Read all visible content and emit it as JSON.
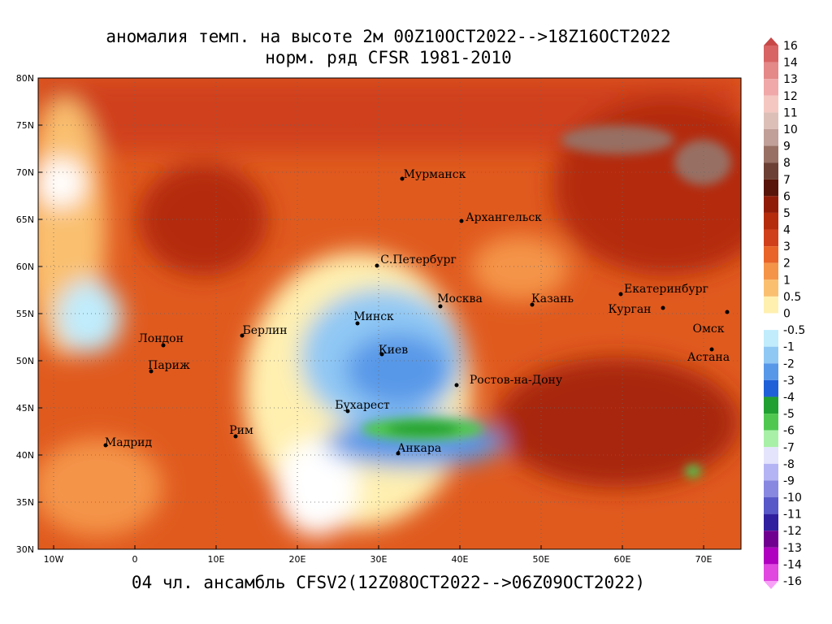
{
  "title": [
    "аномалия темп. на высоте 2м 00Z10OCT2022-->18Z16OCT2022",
    "норм. ряд CFSR 1981-2010"
  ],
  "caption": "04 чл. ансамбль CFSV2(12Z08OCT2022-->06Z09OCT2022)",
  "lat_labels": [
    "80N",
    "75N",
    "70N",
    "65N",
    "60N",
    "55N",
    "50N",
    "45N",
    "40N",
    "35N",
    "30N"
  ],
  "lon_labels": [
    "10W",
    "0",
    "10E",
    "20E",
    "30E",
    "40E",
    "50E",
    "60E",
    "70E"
  ],
  "cities": [
    "Мурманск",
    "Архангельск",
    "С.Петербург",
    "Москва",
    "Казань",
    "Екатеринбург",
    "Курган",
    "Омск",
    "Астана",
    "Минск",
    "Берлин",
    "Лондон",
    "Париж",
    "Киев",
    "Ростов-на-Дону",
    "Бухарест",
    "Рим",
    "Мадрид",
    "Анкара"
  ],
  "colorbar": {
    "levels": [
      16,
      14,
      13,
      12,
      11,
      10,
      9,
      8,
      7,
      6,
      5,
      4,
      3,
      2,
      1,
      0.5,
      0,
      -0.5,
      -1,
      -2,
      -3,
      -4,
      -5,
      -6,
      -7,
      -8,
      -9,
      -10,
      -11,
      -12,
      -13,
      -14,
      -16
    ],
    "colors": [
      "#c84848",
      "#d86464",
      "#e48888",
      "#f0a8a8",
      "#f4c8c0",
      "#dcc0b8",
      "#c0a098",
      "#987064",
      "#6c4034",
      "#581408",
      "#901c08",
      "#b42c0c",
      "#d0401a",
      "#e86428",
      "#f49448",
      "#fac070",
      "#fff0b0",
      "#ffffff",
      "#c0ecfc",
      "#90c8f4",
      "#5898e8",
      "#1e60d8",
      "#20a030",
      "#50c850",
      "#a8f0a8",
      "#e4e4fc",
      "#b4b4f4",
      "#8888e0",
      "#5858c8",
      "#3020a0",
      "#700090",
      "#b000c0",
      "#e048e0",
      "#f8a0f8"
    ]
  }
}
